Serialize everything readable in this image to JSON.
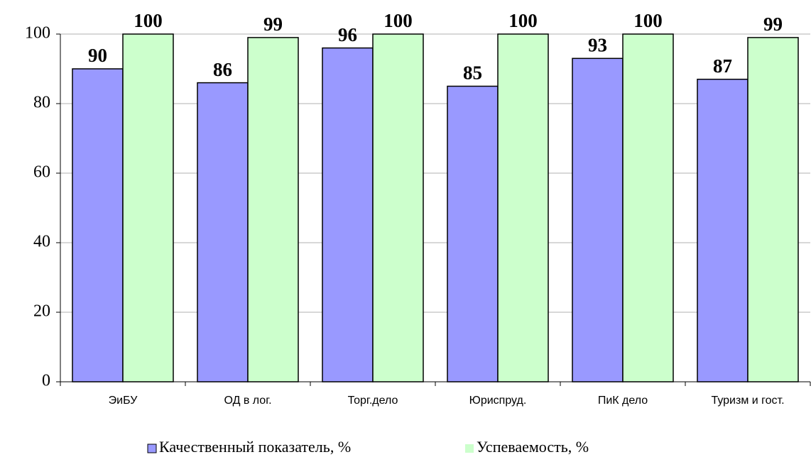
{
  "chart_data": {
    "type": "bar",
    "categories": [
      "ЭиБУ",
      "ОД в лог.",
      "Торг.дело",
      "Юриспруд.",
      "ПиК дело",
      "Туризм и гост."
    ],
    "series": [
      {
        "name": "Качественный показатель, %",
        "color": "#9999ff",
        "values": [
          90,
          86,
          96,
          85,
          93,
          87
        ]
      },
      {
        "name": "Успеваемость, %",
        "color": "#ccffcc",
        "values": [
          100,
          99,
          100,
          100,
          100,
          99
        ]
      }
    ],
    "ylim": [
      0,
      100
    ],
    "yticks": [
      0,
      20,
      40,
      60,
      80,
      100
    ],
    "grid": true,
    "legend": "bottom"
  }
}
